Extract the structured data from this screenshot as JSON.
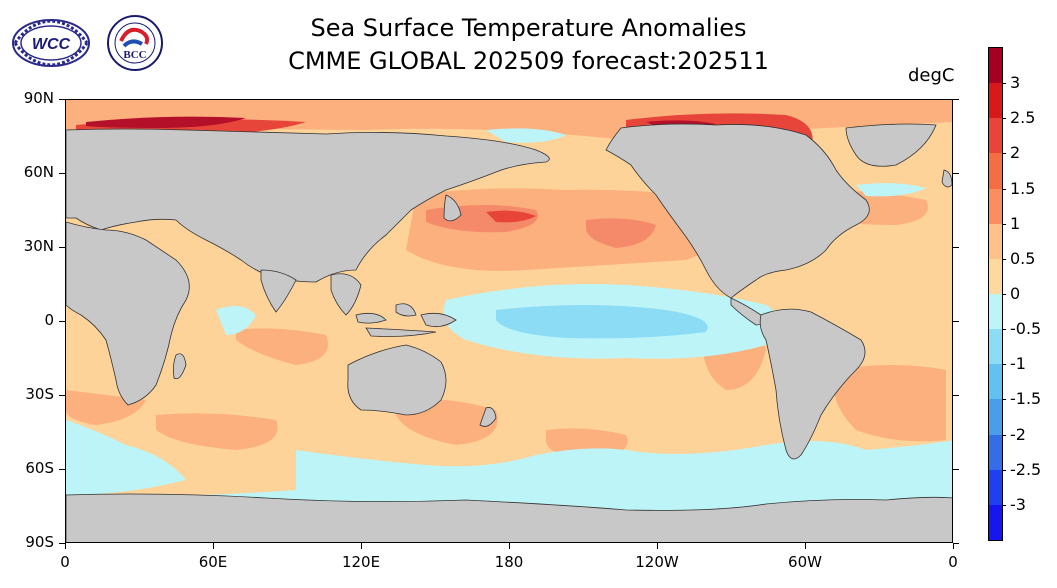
{
  "title": {
    "line1": "Sea Surface Temperature Anomalies",
    "line2": "CMME GLOBAL 202509 forecast:202511"
  },
  "logos": {
    "left": {
      "name": "wcc-logo",
      "text": "WCC"
    },
    "right": {
      "name": "bcc-logo",
      "text": "BCC"
    }
  },
  "units": "degC",
  "y_ticks": [
    "90N",
    "60N",
    "30N",
    "0",
    "30S",
    "60S",
    "90S"
  ],
  "x_ticks": [
    "0",
    "60E",
    "120E",
    "180",
    "120W",
    "60W",
    "0"
  ],
  "colorbar": {
    "labels": [
      "3",
      "2.5",
      "2",
      "1.5",
      "1",
      "0.5",
      "0",
      "-0.5",
      "-1",
      "-1.5",
      "-2",
      "-2.5",
      "-3"
    ],
    "colors": [
      "#a50021",
      "#d7191c",
      "#e8453a",
      "#f46d43",
      "#fb8e60",
      "#fdc28a",
      "#ffffff",
      "#aef0f7",
      "#7cd3f5",
      "#58b4ec",
      "#3f8ee6",
      "#2b5ff0",
      "#1a1aee"
    ],
    "bins": [
      "#a50021",
      "#d7191c",
      "#e8453a",
      "#f46d43",
      "#fb8e60",
      "#fdc28a",
      "#fdd9a0",
      "#bdf4f7",
      "#8cdcf6",
      "#63c1ef",
      "#4a9ee9",
      "#356ce8",
      "#2040f0",
      "#1616ee"
    ]
  },
  "map_colors": {
    "land": "#c8c8c8",
    "base_warm": "#fdd39a",
    "warm1": "#fbb07e",
    "warm2": "#f48a6a",
    "warm3": "#e8453a",
    "hot": "#b5102a",
    "cool1": "#bdf4f7",
    "cool2": "#8cdcf6"
  }
}
